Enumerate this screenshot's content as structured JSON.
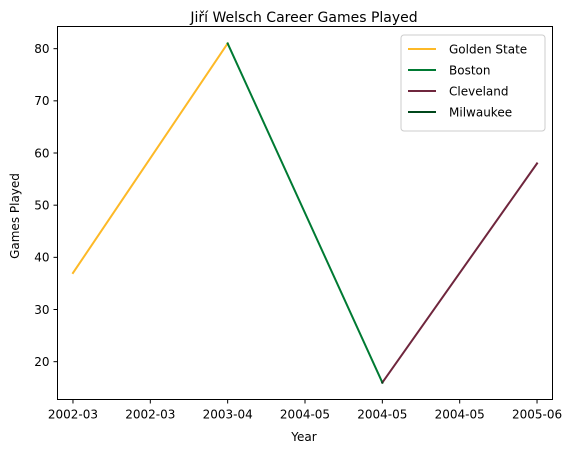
{
  "chart_data": {
    "type": "line",
    "title": "Jiří Welsch Career Games Played",
    "xlabel": "Year",
    "ylabel": "Games Played",
    "x_ticks": [
      "2002-03",
      "2002-03",
      "2003-04",
      "2004-05",
      "2004-05",
      "2004-05",
      "2005-06"
    ],
    "y_ticks": [
      20,
      30,
      40,
      50,
      60,
      70,
      80
    ],
    "x_domain": [
      -0.1,
      3.1
    ],
    "ylim": [
      12.75,
      84.25
    ],
    "legend_position": "top-right",
    "grid": false,
    "series": [
      {
        "name": "Golden State",
        "color": "#FDB927",
        "x": [
          0,
          1
        ],
        "y": [
          37,
          81
        ],
        "labels": [
          "2002-03",
          "2003-04"
        ]
      },
      {
        "name": "Boston",
        "color": "#007A33",
        "x": [
          1,
          2
        ],
        "y": [
          81,
          16
        ],
        "labels": [
          "2003-04",
          "2004-05"
        ]
      },
      {
        "name": "Cleveland",
        "color": "#6F263D",
        "x": [
          2,
          3
        ],
        "y": [
          16,
          58
        ],
        "labels": [
          "2004-05",
          "2005-06"
        ]
      },
      {
        "name": "Milwaukee",
        "color": "#00471B",
        "x": [
          2,
          2
        ],
        "y": [
          16,
          16
        ],
        "labels": [
          "2004-05",
          "2004-05"
        ]
      }
    ]
  }
}
